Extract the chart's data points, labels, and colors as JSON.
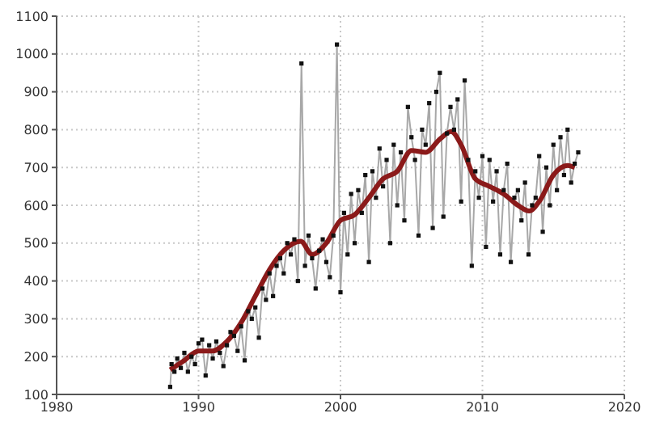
{
  "chart_data": {
    "type": "line",
    "xlim": [
      1980,
      2020
    ],
    "xticks": [
      1980,
      1990,
      2000,
      2010,
      2020
    ],
    "ylim": [
      100,
      1100
    ],
    "yticks": [
      100,
      200,
      300,
      400,
      500,
      600,
      700,
      800,
      900,
      1000,
      1100
    ],
    "grid": true,
    "line_style": "solid",
    "series": [
      {
        "color": "#a8a8a8",
        "marker": "square",
        "x": [
          1988.0,
          1988.1,
          1988.3,
          1988.5,
          1988.75,
          1989.0,
          1989.25,
          1989.5,
          1989.75,
          1990.0,
          1990.25,
          1990.5,
          1990.75,
          1991.0,
          1991.25,
          1991.5,
          1991.75,
          1992.0,
          1992.25,
          1992.5,
          1992.75,
          1993.0,
          1993.25,
          1993.5,
          1993.75,
          1994.0,
          1994.25,
          1994.5,
          1994.75,
          1995.0,
          1995.25,
          1995.5,
          1995.75,
          1996.0,
          1996.25,
          1996.5,
          1996.75,
          1997.0,
          1997.25,
          1997.5,
          1997.75,
          1998.0,
          1998.25,
          1998.5,
          1998.75,
          1999.0,
          1999.25,
          1999.5,
          1999.75,
          2000.0,
          2000.25,
          2000.5,
          2000.75,
          2001.0,
          2001.25,
          2001.5,
          2001.75,
          2002.0,
          2002.25,
          2002.5,
          2002.75,
          2003.0,
          2003.25,
          2003.5,
          2003.75,
          2004.0,
          2004.25,
          2004.5,
          2004.75,
          2005.0,
          2005.25,
          2005.5,
          2005.75,
          2006.0,
          2006.25,
          2006.5,
          2006.75,
          2007.0,
          2007.25,
          2007.5,
          2007.75,
          2008.0,
          2008.25,
          2008.5,
          2008.75,
          2009.0,
          2009.25,
          2009.5,
          2009.75,
          2010.0,
          2010.25,
          2010.5,
          2010.75,
          2011.0,
          2011.25,
          2011.5,
          2011.75,
          2012.0,
          2012.25,
          2012.5,
          2012.75,
          2013.0,
          2013.25,
          2013.5,
          2013.75,
          2014.0,
          2014.25,
          2014.5,
          2014.75,
          2015.0,
          2015.25,
          2015.5,
          2015.75,
          2016.0,
          2016.25,
          2016.5,
          2016.75
        ],
        "values": [
          120,
          180,
          160,
          195,
          170,
          210,
          160,
          200,
          180,
          235,
          245,
          150,
          230,
          195,
          240,
          210,
          175,
          230,
          265,
          255,
          215,
          280,
          190,
          320,
          300,
          330,
          250,
          380,
          350,
          420,
          360,
          440,
          460,
          420,
          500,
          470,
          510,
          400,
          975,
          440,
          520,
          460,
          380,
          480,
          510,
          450,
          410,
          520,
          1025,
          370,
          580,
          470,
          630,
          500,
          640,
          580,
          680,
          450,
          690,
          620,
          750,
          650,
          720,
          500,
          760,
          600,
          740,
          560,
          860,
          780,
          720,
          520,
          800,
          760,
          870,
          540,
          900,
          950,
          570,
          790,
          860,
          800,
          880,
          610,
          930,
          720,
          440,
          690,
          620,
          730,
          490,
          720,
          610,
          690,
          470,
          640,
          710,
          450,
          620,
          640,
          560,
          660,
          470,
          600,
          620,
          730,
          530,
          700,
          600,
          760,
          640,
          780,
          680,
          800,
          660,
          710,
          740
        ]
      },
      {
        "color": "#8b1a1a",
        "marker": "none",
        "x": [
          1988,
          1989,
          1990,
          1991,
          1992,
          1993,
          1994,
          1995,
          1996,
          1997.2,
          1998,
          1999,
          2000,
          2001,
          2002,
          2003,
          2004,
          2005,
          2006,
          2007,
          2007.8,
          2008.5,
          2009.5,
          2010.5,
          2011.5,
          2012.5,
          2013.3,
          2014,
          2015,
          2016,
          2016.5
        ],
        "values": [
          165,
          190,
          215,
          215,
          240,
          290,
          360,
          430,
          480,
          505,
          470,
          500,
          560,
          575,
          620,
          670,
          690,
          745,
          740,
          775,
          795,
          760,
          670,
          650,
          630,
          600,
          585,
          610,
          680,
          705,
          700
        ]
      }
    ]
  }
}
